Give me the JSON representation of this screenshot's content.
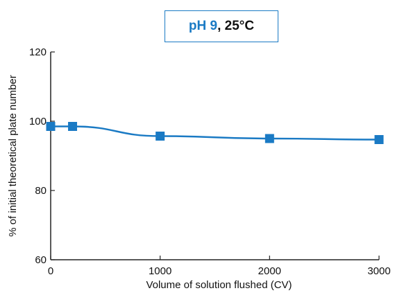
{
  "colors": {
    "series": "#1a7ac4",
    "axis": "#222222",
    "text": "#111111"
  },
  "legend": {
    "ph_text": "pH 9",
    "rest_text": ", 25°C"
  },
  "chart_data": {
    "type": "line",
    "title": "",
    "xlabel": "Volume of solution flushed (CV)",
    "ylabel": "% of initial theoretical plate number",
    "xlim": [
      0,
      3000
    ],
    "ylim": [
      60,
      120
    ],
    "xticks": [
      0,
      1000,
      2000,
      3000
    ],
    "yticks": [
      60,
      80,
      100,
      120
    ],
    "grid": false,
    "series": [
      {
        "label": "pH 9, 25°C",
        "marker": "square",
        "x": [
          0,
          200,
          1000,
          2000,
          3000
        ],
        "y": [
          98.5,
          98.5,
          95.7,
          95.0,
          94.7
        ]
      }
    ]
  }
}
